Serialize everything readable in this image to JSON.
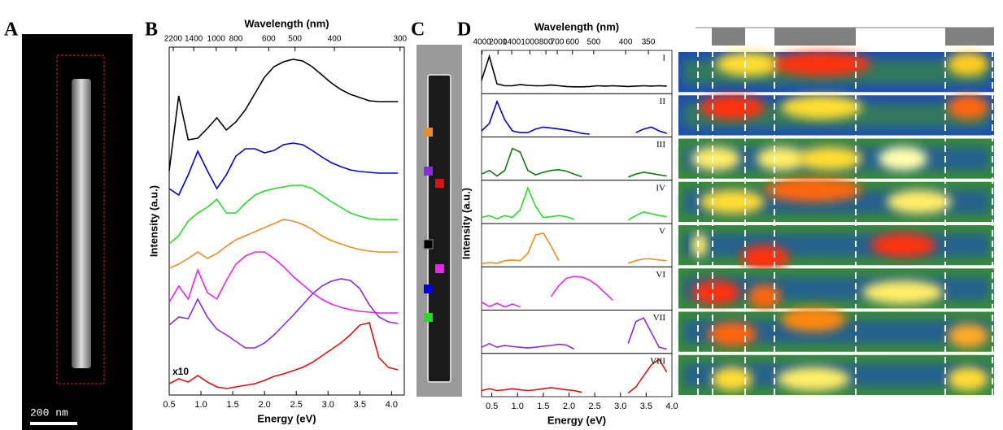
{
  "panels": {
    "A": {
      "label": "A",
      "scale_bar": "200 nm"
    },
    "C": {
      "label": "C"
    }
  },
  "chart_data": [
    {
      "type": "line",
      "label": "B",
      "title": "Wavelength (nm)",
      "x_label": "Energy (eV)",
      "y_label": "Intensity (a.u.)",
      "annotation": "x10",
      "x": [
        0.5,
        0.65,
        0.8,
        0.95,
        1.1,
        1.25,
        1.4,
        1.55,
        1.7,
        1.85,
        2.0,
        2.15,
        2.3,
        2.45,
        2.6,
        2.75,
        2.9,
        3.05,
        3.2,
        3.35,
        3.5,
        3.65,
        3.8,
        3.95,
        4.1
      ],
      "xlim": [
        0.5,
        4.2
      ],
      "xticks": [
        0.5,
        {
          "value": 1,
          "label": "1.0"
        },
        1.5,
        {
          "value": 2,
          "label": "2.0"
        },
        2.5,
        {
          "value": 3,
          "label": "3.0"
        },
        3.5,
        {
          "value": 4,
          "label": "4.0"
        }
      ],
      "x2ticks": [
        2200,
        1400,
        1000,
        800,
        600,
        500,
        400,
        300
      ],
      "ylim": [
        0,
        428
      ],
      "series": [
        {
          "color": "#000000",
          "values": [
            276,
            368,
            314,
            316,
            328,
            341,
            326,
            336,
            351,
            371,
            391,
            404,
            410,
            413,
            411,
            404,
            394,
            384,
            376,
            370,
            366,
            362,
            361,
            361,
            361
          ]
        },
        {
          "color": "#0000dd",
          "values": [
            254,
            246,
            271,
            300,
            276,
            254,
            271,
            294,
            303,
            303,
            298,
            301,
            308,
            310,
            308,
            301,
            293,
            286,
            281,
            277,
            275,
            274,
            273,
            273,
            273
          ]
        },
        {
          "color": "#22dd22",
          "values": [
            186,
            196,
            214,
            224,
            231,
            241,
            224,
            224,
            236,
            246,
            251,
            254,
            256,
            258,
            258,
            254,
            246,
            238,
            231,
            224,
            220,
            217,
            216,
            216,
            216
          ]
        },
        {
          "color": "#f08a24",
          "values": [
            156,
            161,
            168,
            176,
            168,
            174,
            183,
            191,
            196,
            201,
            206,
            211,
            216,
            214,
            210,
            204,
            196,
            190,
            186,
            182,
            179,
            177,
            176,
            176,
            176
          ]
        },
        {
          "color": "#ee22ee",
          "values": [
            114,
            134,
            118,
            154,
            126,
            118,
            141,
            161,
            171,
            176,
            176,
            168,
            158,
            146,
            136,
            126,
            118,
            112,
            108,
            105,
            103,
            102,
            101,
            101,
            101
          ]
        },
        {
          "color": "#8a2be2",
          "values": [
            86,
            96,
            94,
            118,
            96,
            81,
            74,
            66,
            58,
            58,
            64,
            74,
            86,
            98,
            111,
            124,
            134,
            140,
            143,
            141,
            131,
            111,
            96,
            90,
            88
          ]
        },
        {
          "color": "#e01010",
          "values": [
            14,
            20,
            16,
            24,
            16,
            10,
            8,
            10,
            12,
            14,
            18,
            23,
            26,
            30,
            34,
            40,
            48,
            56,
            64,
            74,
            86,
            89,
            46,
            34,
            31
          ]
        }
      ]
    },
    {
      "type": "small-multiples",
      "label": "D",
      "title": "Wavelength (nm)",
      "x_label": "Energy (eV)",
      "y_label": "Intensity (a.u.)",
      "x": [
        0.3,
        0.45,
        0.6,
        0.75,
        0.9,
        1.05,
        1.2,
        1.35,
        1.5,
        1.65,
        1.8,
        1.95,
        2.1,
        2.25,
        2.4,
        2.55,
        2.7,
        2.85,
        3.0,
        3.15,
        3.3,
        3.45,
        3.6,
        3.75,
        3.9
      ],
      "xlim": [
        0.3,
        4.0
      ],
      "xticks": [
        0.5,
        {
          "value": 1,
          "label": "1.0"
        },
        1.5,
        {
          "value": 2,
          "label": "2.0"
        },
        2.5,
        {
          "value": 3,
          "label": "3.0"
        },
        3.5,
        {
          "value": 4,
          "label": "4.0"
        }
      ],
      "x2ticks": [
        4000,
        2000,
        1400,
        1000,
        800,
        700,
        600,
        500,
        400,
        350
      ],
      "ylim": [
        0,
        10
      ],
      "subplots": [
        {
          "label": "I",
          "color": "#000000",
          "values": [
            3,
            9.5,
            2,
            1.5,
            1.5,
            1.8,
            1.6,
            1.5,
            1.5,
            1.7,
            1.5,
            1.3,
            1.2,
            1.2,
            1.3,
            1.5,
            1.4,
            1.5,
            1.4,
            1.3,
            1.4,
            1.5,
            1.4,
            1.5,
            1.4
          ]
        },
        {
          "label": "II",
          "color": "#0000dd",
          "values": [
            1,
            3,
            9,
            4,
            1,
            0.5,
            0.5,
            1.5,
            2,
            1.8,
            1.5,
            1.2,
            0.8,
            0.3,
            0.1,
            null,
            null,
            null,
            null,
            null,
            0.5,
            1.5,
            2,
            1,
            0.3
          ]
        },
        {
          "label": "III",
          "color": "#107a10",
          "values": [
            1,
            2,
            0.5,
            2,
            8,
            7,
            2,
            0.8,
            1.5,
            2,
            2.2,
            1.8,
            1,
            0.3,
            null,
            null,
            null,
            null,
            null,
            0.2,
            1,
            1.5,
            1.2,
            0.8,
            0.5
          ]
        },
        {
          "label": "IV",
          "color": "#22dd22",
          "values": [
            1,
            1.5,
            0.6,
            1.5,
            1,
            3,
            9,
            4,
            1,
            1.2,
            1.5,
            1.2,
            0.5,
            null,
            null,
            null,
            null,
            null,
            null,
            0.3,
            1.5,
            2.5,
            2,
            1.5,
            1.2
          ]
        },
        {
          "label": "V",
          "color": "#f08a24",
          "values": [
            0.2,
            0.5,
            0.3,
            1,
            1.2,
            1,
            3,
            8,
            8.5,
            5,
            1,
            null,
            null,
            null,
            null,
            null,
            null,
            null,
            null,
            0.3,
            1,
            1.5,
            1.5,
            1.2,
            1
          ]
        },
        {
          "label": "VI",
          "color": "#ee22ee",
          "values": [
            1.5,
            0.3,
            1.2,
            0.2,
            1,
            0.2,
            null,
            null,
            null,
            3,
            6,
            8,
            8.5,
            8.3,
            7.5,
            6,
            4,
            2,
            null,
            null,
            null,
            null,
            null,
            null,
            null
          ]
        },
        {
          "label": "VII",
          "color": "#8a2be2",
          "values": [
            1,
            2,
            1,
            1.5,
            1.2,
            1,
            0.8,
            1,
            1.3,
            1.5,
            1.8,
            1.6,
            0.5,
            null,
            null,
            null,
            null,
            null,
            null,
            2,
            8,
            9,
            5,
            1,
            0.5
          ]
        },
        {
          "label": "VIII",
          "color": "#e01010",
          "values": [
            1,
            1.5,
            1,
            1.2,
            1.5,
            1.2,
            1,
            1.2,
            1.5,
            1.8,
            1.5,
            1.2,
            1,
            0.5,
            null,
            null,
            null,
            null,
            null,
            0.3,
            2,
            5,
            8,
            9.5,
            6
          ]
        }
      ]
    }
  ]
}
